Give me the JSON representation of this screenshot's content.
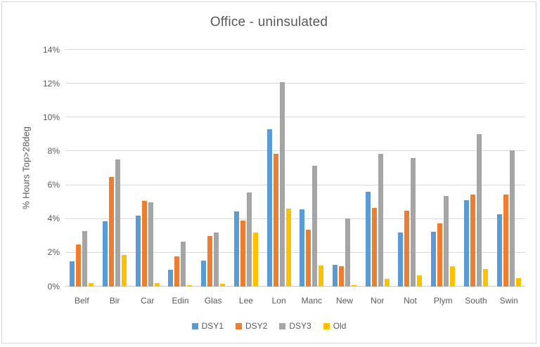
{
  "colors": {
    "text": "#595959",
    "gridline": "#d9d9d9",
    "axis_line": "#c8c8c8",
    "frame_border": "#d7d7d7",
    "series_blue": "#5B9BD5",
    "series_orange": "#ED7D31",
    "series_gray": "#A5A5A5",
    "series_yellow": "#FFC000"
  },
  "chart_data": {
    "type": "bar",
    "title": "Office - uninsulated",
    "xlabel": "",
    "ylabel": "% Hours Top>28deg",
    "ylim": [
      0,
      14
    ],
    "grid": true,
    "legend_position": "bottom",
    "y_ticks": [
      {
        "value": 0,
        "label": "0%"
      },
      {
        "value": 2,
        "label": "2%"
      },
      {
        "value": 4,
        "label": "4%"
      },
      {
        "value": 6,
        "label": "6%"
      },
      {
        "value": 8,
        "label": "8%"
      },
      {
        "value": 10,
        "label": "10%"
      },
      {
        "value": 12,
        "label": "12%"
      },
      {
        "value": 14,
        "label": "14%"
      }
    ],
    "categories": [
      "Belf",
      "Bir",
      "Car",
      "Edin",
      "Glas",
      "Lee",
      "Lon",
      "Manc",
      "New",
      "Nor",
      "Not",
      "Plym",
      "South",
      "Swin"
    ],
    "series": [
      {
        "name": "DSY1",
        "color": "#5B9BD5",
        "values": [
          1.5,
          3.85,
          4.2,
          1.0,
          1.55,
          4.45,
          9.3,
          4.55,
          1.3,
          5.6,
          3.2,
          3.25,
          5.1,
          4.3
        ]
      },
      {
        "name": "DSY2",
        "color": "#ED7D31",
        "values": [
          2.5,
          6.5,
          5.05,
          1.8,
          3.0,
          3.9,
          7.85,
          3.35,
          1.2,
          4.65,
          4.5,
          3.75,
          5.45,
          5.45
        ]
      },
      {
        "name": "DSY3",
        "color": "#A5A5A5",
        "values": [
          3.3,
          7.5,
          5.0,
          2.65,
          3.2,
          5.55,
          12.1,
          7.15,
          4.05,
          7.85,
          7.6,
          5.35,
          9.0,
          8.05
        ]
      },
      {
        "name": "Old",
        "color": "#FFC000",
        "values": [
          0.2,
          1.85,
          0.2,
          0.1,
          0.15,
          3.2,
          4.6,
          1.25,
          0.1,
          0.45,
          0.65,
          1.2,
          1.05,
          0.5
        ]
      }
    ]
  }
}
